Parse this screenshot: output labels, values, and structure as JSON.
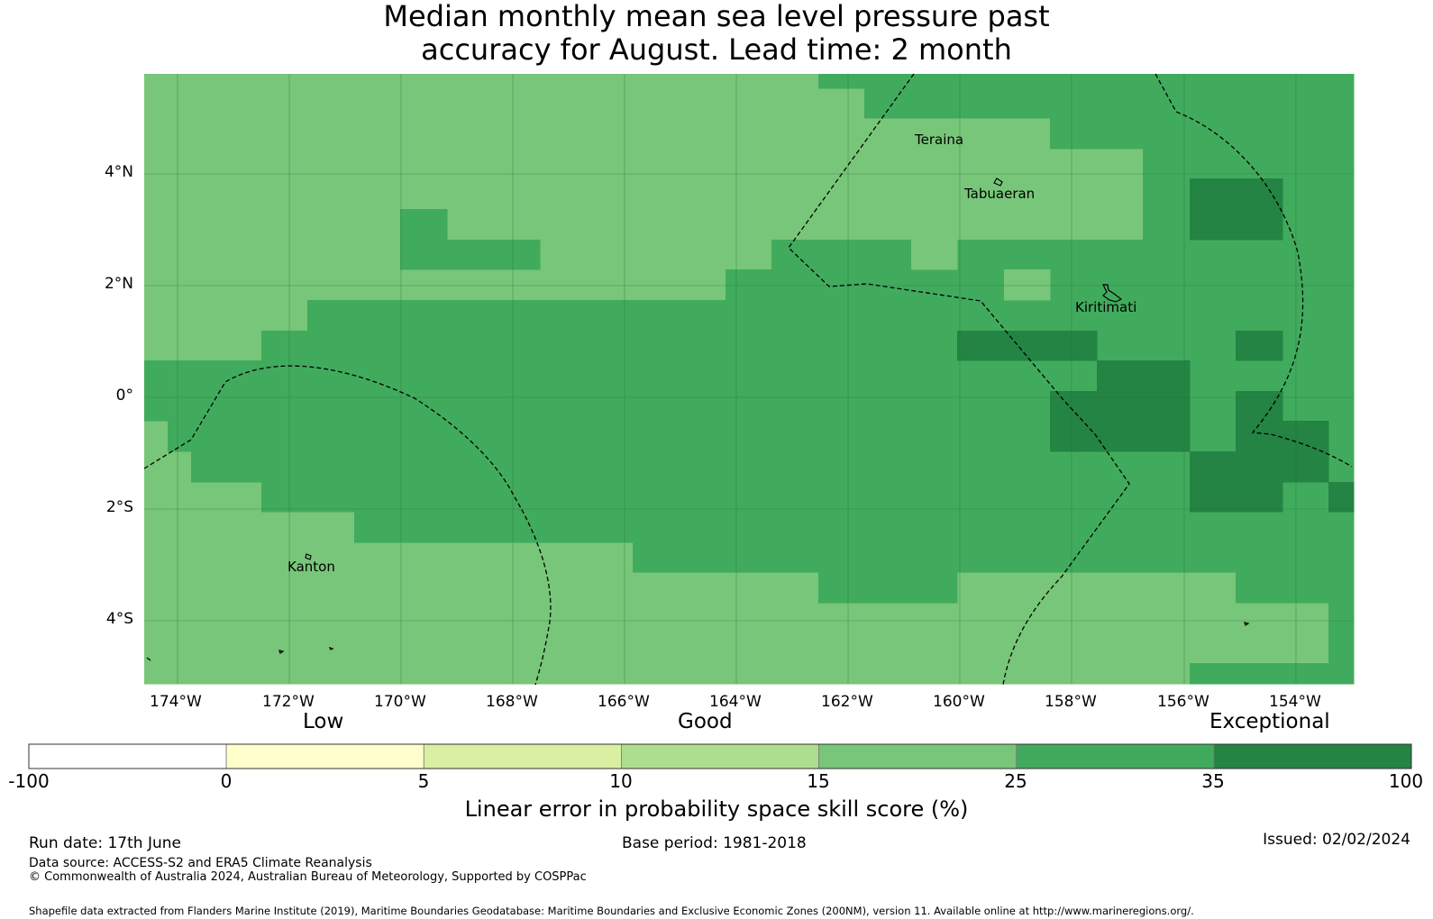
{
  "title_line1": "Median monthly mean sea level pressure past",
  "title_line2": "accuracy for August. Lead time: 2 month",
  "lon_ticks": [
    "174°W",
    "172°W",
    "170°W",
    "168°W",
    "166°W",
    "164°W",
    "162°W",
    "160°W",
    "158°W",
    "156°W",
    "154°W"
  ],
  "lat_ticks": [
    "4°N",
    "2°N",
    "0°",
    "2°S",
    "4°S"
  ],
  "places": [
    "Teraina",
    "Tabuaeran",
    "Kiritimati",
    "Kanton"
  ],
  "colorbar": {
    "categories": [
      "Low",
      "Good",
      "Exceptional"
    ],
    "tick_labels": [
      "-100",
      "0",
      "5",
      "10",
      "15",
      "25",
      "35",
      "100"
    ],
    "colors": [
      "#ffffff",
      "#ffffcc",
      "#d9f0a3",
      "#addd8e",
      "#78c679",
      "#41ab5d",
      "#238443"
    ],
    "label": "Linear error in probability space skill score (%)"
  },
  "footer": {
    "run_date": "Run date: 17th June",
    "base_period": "Base period: 1981-2018",
    "issued": "Issued: 02/02/2024",
    "data_source": "Data source: ACCESS-S2 and ERA5 Climate Reanalysis",
    "copyright": "© Commonwealth of Australia 2024, Australian Bureau of Meteorology, Supported by COSPPac",
    "shapefile": "Shapefile data extracted from Flanders Marine Institute (2019), Maritime Boundaries Geodatabase: Maritime Boundaries and Exclusive Economic Zones (200NM), version 11. Available online at http://www.marineregions.org/."
  }
}
